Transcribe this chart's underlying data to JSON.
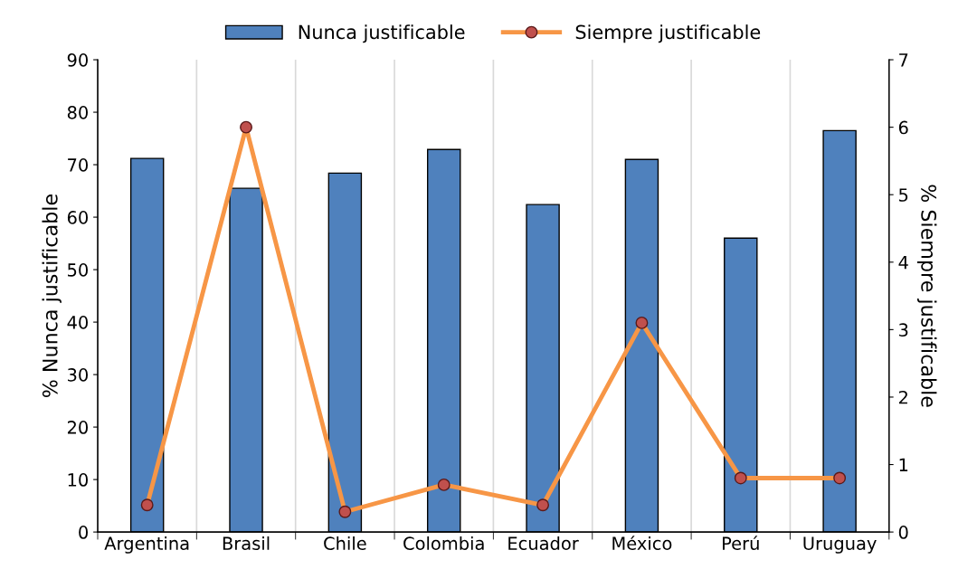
{
  "chart_data": {
    "type": "bar",
    "categories": [
      "Argentina",
      "Brasil",
      "Chile",
      "Colombia",
      "Ecuador",
      "México",
      "Perú",
      "Uruguay"
    ],
    "series": [
      {
        "name": "Nunca justificable",
        "color": "#4f81bd",
        "values": [
          71.2,
          65.5,
          68.4,
          72.9,
          62.4,
          71.0,
          56.0,
          76.5
        ]
      },
      {
        "name": "Siempre justificable",
        "type": "line",
        "axis": "y2",
        "color": "#f79646",
        "values": [
          0.4,
          6.0,
          0.3,
          0.7,
          0.4,
          3.1,
          0.8,
          0.8
        ]
      }
    ],
    "ylabel": "% Nunca justificable",
    "y2label": "% Siempre justificable",
    "ylim": [
      0,
      90
    ],
    "yticks": [
      0,
      10,
      20,
      30,
      40,
      50,
      60,
      70,
      80,
      90
    ],
    "y2lim": [
      0,
      7
    ],
    "y2ticks": [
      0,
      1,
      2,
      3,
      4,
      5,
      6,
      7
    ],
    "grid": "x",
    "legend": "top",
    "marker": "circle",
    "line_style": "solid"
  }
}
